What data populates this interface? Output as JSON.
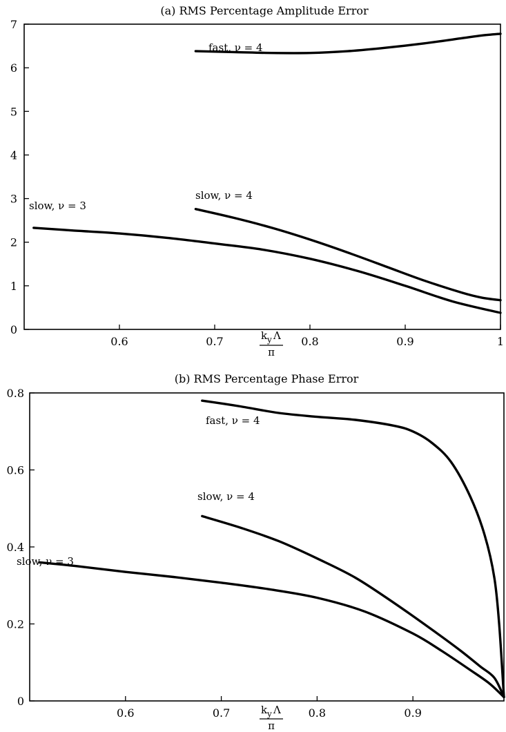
{
  "chart_data": [
    {
      "type": "line",
      "title": "(a) RMS Percentage Amplitude Error",
      "xlabel_numerator": "k",
      "xlabel_subscript": "y",
      "xlabel_symbol": "Λ",
      "xlabel_denominator": "π",
      "xlim": [
        0.5,
        1.0
      ],
      "ylim": [
        0,
        7
      ],
      "xticks": [
        0.6,
        0.7,
        0.8,
        0.9,
        1
      ],
      "xtick_labels": [
        "0.6",
        "0.7",
        "0.8",
        "0.9",
        "1"
      ],
      "yticks": [
        0,
        1,
        2,
        3,
        4,
        5,
        6,
        7
      ],
      "ytick_labels": [
        "0",
        "1",
        "2",
        "3",
        "4",
        "5",
        "6",
        "7"
      ],
      "series": [
        {
          "name": "fast, ν = 4",
          "x": [
            0.68,
            0.72,
            0.76,
            0.8,
            0.84,
            0.88,
            0.92,
            0.96,
            0.98,
            1.0
          ],
          "y": [
            6.38,
            6.36,
            6.34,
            6.34,
            6.38,
            6.46,
            6.56,
            6.68,
            6.74,
            6.78
          ]
        },
        {
          "name": "slow, ν = 4",
          "x": [
            0.68,
            0.72,
            0.76,
            0.8,
            0.84,
            0.88,
            0.92,
            0.96,
            0.98,
            1.0
          ],
          "y": [
            2.76,
            2.56,
            2.33,
            2.06,
            1.76,
            1.44,
            1.12,
            0.84,
            0.73,
            0.67
          ]
        },
        {
          "name": "slow, ν = 3",
          "x": [
            0.51,
            0.55,
            0.6,
            0.65,
            0.7,
            0.75,
            0.8,
            0.85,
            0.9,
            0.95,
            1.0
          ],
          "y": [
            2.33,
            2.27,
            2.2,
            2.1,
            1.97,
            1.83,
            1.62,
            1.34,
            1.0,
            0.64,
            0.38
          ]
        }
      ],
      "annotations": [
        "fast, ν = 4",
        "slow, ν = 4",
        "slow, ν = 3"
      ]
    },
    {
      "type": "line",
      "title": "(b) RMS Percentage Phase Error",
      "xlabel_numerator": "k",
      "xlabel_subscript": "y",
      "xlabel_symbol": "Λ",
      "xlabel_denominator": "π",
      "xlim": [
        0.5,
        0.995
      ],
      "ylim": [
        0,
        0.8
      ],
      "xticks": [
        0.6,
        0.7,
        0.8,
        0.9
      ],
      "xtick_labels": [
        "0.6",
        "0.7",
        "0.8",
        "0.9"
      ],
      "yticks": [
        0,
        0.2,
        0.4,
        0.6,
        0.8
      ],
      "ytick_labels": [
        "0",
        "0.2",
        "0.4",
        "0.6",
        "0.8"
      ],
      "series": [
        {
          "name": "fast, ν = 4",
          "x": [
            0.68,
            0.72,
            0.76,
            0.8,
            0.84,
            0.88,
            0.9,
            0.92,
            0.94,
            0.96,
            0.975,
            0.985,
            0.99,
            0.995
          ],
          "y": [
            0.78,
            0.765,
            0.748,
            0.738,
            0.73,
            0.715,
            0.7,
            0.67,
            0.62,
            0.53,
            0.43,
            0.32,
            0.2,
            0.01
          ]
        },
        {
          "name": "slow, ν = 4",
          "x": [
            0.68,
            0.72,
            0.76,
            0.8,
            0.84,
            0.88,
            0.92,
            0.95,
            0.97,
            0.985,
            0.995
          ],
          "y": [
            0.48,
            0.45,
            0.415,
            0.37,
            0.32,
            0.255,
            0.185,
            0.13,
            0.09,
            0.06,
            0.01
          ]
        },
        {
          "name": "slow, ν = 3",
          "x": [
            0.51,
            0.55,
            0.6,
            0.65,
            0.7,
            0.75,
            0.8,
            0.85,
            0.9,
            0.93,
            0.96,
            0.98,
            0.995
          ],
          "y": [
            0.36,
            0.35,
            0.335,
            0.322,
            0.307,
            0.29,
            0.268,
            0.232,
            0.175,
            0.13,
            0.08,
            0.045,
            0.01
          ]
        }
      ],
      "annotations": [
        "fast, ν = 4",
        "slow, ν = 4",
        "slow, ν = 3"
      ]
    }
  ]
}
